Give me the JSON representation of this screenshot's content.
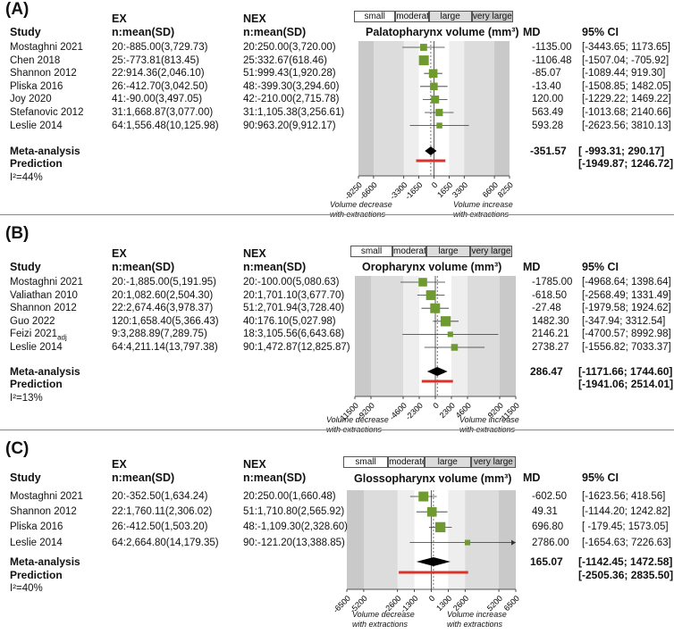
{
  "columns": {
    "study": "Study",
    "ex": [
      "EX",
      "n:mean(SD)"
    ],
    "nex": [
      "NEX",
      "n:mean(SD)"
    ],
    "md": "MD",
    "ci": "95% CI"
  },
  "effect_categories": [
    "small",
    "moderate",
    "large",
    "very large"
  ],
  "meta_label": "Meta-analysis",
  "prediction_label": "Prediction",
  "direction_notes": {
    "left": [
      "Volume decrease",
      "with extractions"
    ],
    "right": [
      "Volume increase",
      "with extractions"
    ]
  },
  "colors": {
    "marker": "#6f9a30",
    "prediction": "#d9342b",
    "band_outer": "#c9c9c9",
    "band_mid": "#dcdcdc",
    "band_inner": "#eeeeee"
  },
  "chart_data": [
    {
      "type": "forest",
      "panel_label": "(A)",
      "title": "Palatopharynx volume (mm³)",
      "xlim": [
        -8250,
        8250
      ],
      "band_thresholds": [
        1650,
        3300,
        6600
      ],
      "xticks": [
        -8250,
        -6600,
        -3300,
        -1650,
        0,
        1650,
        3300,
        6600,
        8250
      ],
      "xtick_labels": [
        "-8250",
        "-6600",
        "-3300",
        "-1650",
        "0",
        "1650",
        "3300",
        "6600",
        "8250"
      ],
      "studies": [
        {
          "study": "Mostaghni 2021",
          "ex": "20:-885.00(3,729.73)",
          "nex": "20:250.00(3,720.00)",
          "md": -1135.0,
          "md_text": "-1135.00",
          "ci": [
            -3443.65,
            1173.65
          ],
          "ci_text": "[-3443.65; 1173.65]",
          "weight": 0.55
        },
        {
          "study": "Chen 2018",
          "ex": "25:-773.81(813.45)",
          "nex": "25:332.67(618.46)",
          "md": -1106.48,
          "md_text": "-1106.48",
          "ci": [
            -1507.04,
            -705.92
          ],
          "ci_text": "[-1507.04; -705.92]",
          "weight": 1.0
        },
        {
          "study": "Shannon 2012",
          "ex": "22:914.36(2,046.10)",
          "nex": "51:999.43(1,920.28)",
          "md": -85.07,
          "md_text": "-85.07",
          "ci": [
            -1089.44,
            919.3
          ],
          "ci_text": "[-1089.44; 919.30]",
          "weight": 0.8
        },
        {
          "study": "Pliska 2016",
          "ex": "26:-412.70(3,042.50)",
          "nex": "48:-399.30(3,294.60)",
          "md": -13.4,
          "md_text": "-13.40",
          "ci": [
            -1508.85,
            1482.05
          ],
          "ci_text": "[-1508.85; 1482.05]",
          "weight": 0.65
        },
        {
          "study": "Joy 2020",
          "ex": "41:-90.00(3,497.05)",
          "nex": "42:-210.00(2,715.78)",
          "md": 120.0,
          "md_text": "120.00",
          "ci": [
            -1229.22,
            1469.22
          ],
          "ci_text": "[-1229.22; 1469.22]",
          "weight": 0.7
        },
        {
          "study": "Stefanovic 2012",
          "ex": "31:1,668.87(3,077.00)",
          "nex": "31:1,105.38(3,256.61)",
          "md": 563.49,
          "md_text": "563.49",
          "ci": [
            -1013.68,
            2140.66
          ],
          "ci_text": "[-1013.68; 2140.66]",
          "weight": 0.6
        },
        {
          "study": "Leslie 2014",
          "ex": "64:1,556.48(10,125.98)",
          "nex": "90:963.20(9,912.17)",
          "md": 593.28,
          "md_text": "593.28",
          "ci": [
            -2623.56,
            3810.13
          ],
          "ci_text": "[-2623.56; 3810.13]",
          "weight": 0.35
        }
      ],
      "meta": {
        "md": -351.57,
        "md_text": "-351.57",
        "ci": [
          -993.31,
          290.17
        ],
        "ci_text": "[ -993.31;  290.17]"
      },
      "prediction": {
        "ci": [
          -1949.87,
          1246.72
        ],
        "ci_text": "[-1949.87; 1246.72]"
      },
      "i2": "I²=44%"
    },
    {
      "type": "forest",
      "panel_label": "(B)",
      "title": "Oropharynx volume (mm³)",
      "xlim": [
        -11500,
        11500
      ],
      "band_thresholds": [
        2300,
        4600,
        9200
      ],
      "xticks": [
        -11500,
        -9200,
        -4600,
        -2300,
        0,
        2300,
        4600,
        9200,
        11500
      ],
      "xtick_labels": [
        "-11500",
        "-9200",
        "-4600",
        "-2300",
        "0",
        "2300",
        "4600",
        "9200",
        "11500"
      ],
      "studies": [
        {
          "study": "Mostaghni 2021",
          "ex": "20:-1,885.00(5,191.95)",
          "nex": "20:-100.00(5,080.63)",
          "md": -1785.0,
          "md_text": "-1785.00",
          "ci": [
            -4968.64,
            1398.64
          ],
          "ci_text": "[-4968.64; 1398.64]",
          "weight": 0.8
        },
        {
          "study": "Valiathan 2010",
          "ex": "20:1,082.60(2,504.30)",
          "nex": "20:1,701.10(3,677.70)",
          "md": -618.5,
          "md_text": "-618.50",
          "ci": [
            -2568.49,
            1331.49
          ],
          "ci_text": "[-2568.49; 1331.49]",
          "weight": 1.0
        },
        {
          "study": "Shannon 2012",
          "ex": "22:2,674.46(3,978.37)",
          "nex": "51:2,701.94(3,728.40)",
          "md": -27.48,
          "md_text": "-27.48",
          "ci": [
            -1979.58,
            1924.62
          ],
          "ci_text": "[-1979.58; 1924.62]",
          "weight": 1.0
        },
        {
          "study": "Guo 2022",
          "ex": "120:1,658.40(5,366.43)",
          "nex": "40:176.10(5,027.98)",
          "md": 1482.3,
          "md_text": "1482.30",
          "ci": [
            -347.94,
            3312.54
          ],
          "ci_text": "[-347.94; 3312.54]",
          "weight": 1.05
        },
        {
          "study": "Feizi 2021",
          "study_sub": "adj",
          "ex": "9:3,288.89(7,289.75)",
          "nex": "18:3,105.56(6,643.68)",
          "md": 2146.21,
          "md_text": "2146.21",
          "ci": [
            -4700.57,
            8992.98
          ],
          "ci_text": "[-4700.57; 8992.98]",
          "weight": 0.3
        },
        {
          "study": "Leslie 2014",
          "ex": "64:4,211.14(13,797.38)",
          "nex": "90:1,472.87(12,825.87)",
          "md": 2738.27,
          "md_text": "2738.27",
          "ci": [
            -1556.82,
            7033.37
          ],
          "ci_text": "[-1556.82; 7033.37]",
          "weight": 0.5
        }
      ],
      "meta": {
        "md": 286.47,
        "md_text": "286.47",
        "ci": [
          -1171.66,
          1744.6
        ],
        "ci_text": "[-1171.66; 1744.60]"
      },
      "prediction": {
        "ci": [
          -1941.06,
          2514.01
        ],
        "ci_text": "[-1941.06; 2514.01]"
      },
      "i2": "I²=13%"
    },
    {
      "type": "forest",
      "panel_label": "(C)",
      "title": "Glossopharynx volume (mm³)",
      "xlim": [
        -6500,
        6500
      ],
      "band_thresholds": [
        1300,
        2600,
        5200
      ],
      "xticks": [
        -6500,
        -5200,
        -2600,
        -1300,
        0,
        1300,
        2600,
        5200,
        6500
      ],
      "xtick_labels": [
        "-6500",
        "-5200",
        "-2600",
        "-1300",
        "0",
        "1300",
        "2600",
        "5200",
        "6500"
      ],
      "studies": [
        {
          "study": "Mostaghni 2021",
          "ex": "20:-352.50(1,634.24)",
          "nex": "20:250.00(1,660.48)",
          "md": -602.5,
          "md_text": "-602.50",
          "ci": [
            -1623.56,
            418.56
          ],
          "ci_text": "[-1623.56;  418.56]",
          "weight": 1.0
        },
        {
          "study": "Shannon 2012",
          "ex": "22:1,760.11(2,306.02)",
          "nex": "51:1,710.80(2,565.92)",
          "md": 49.31,
          "md_text": "49.31",
          "ci": [
            -1144.2,
            1242.82
          ],
          "ci_text": "[-1144.20; 1242.82]",
          "weight": 0.95
        },
        {
          "study": "Pliska 2016",
          "ex": "26:-412.50(1,503.20)",
          "nex": "48:-1,109.30(2,328.60)",
          "md": 696.8,
          "md_text": "696.80",
          "ci": [
            -179.45,
            1573.05
          ],
          "ci_text": "[ -179.45; 1573.05]",
          "weight": 1.05
        },
        {
          "study": "Leslie 2014",
          "ex": "64:2,664.80(14,179.35)",
          "nex": "90:-121.20(13,388.85)",
          "md": 2786.0,
          "md_text": "2786.00",
          "ci": [
            -1654.63,
            7226.63
          ],
          "ci_text": "[-1654.63; 7226.63]",
          "weight": 0.3,
          "arrow_right": true
        }
      ],
      "meta": {
        "md": 165.07,
        "md_text": "165.07",
        "ci": [
          -1142.45,
          1472.58
        ],
        "ci_text": "[-1142.45; 1472.58]"
      },
      "prediction": {
        "ci": [
          -2505.36,
          2835.5
        ],
        "ci_text": "[-2505.36; 2835.50]"
      },
      "i2": "I²=40%"
    }
  ]
}
